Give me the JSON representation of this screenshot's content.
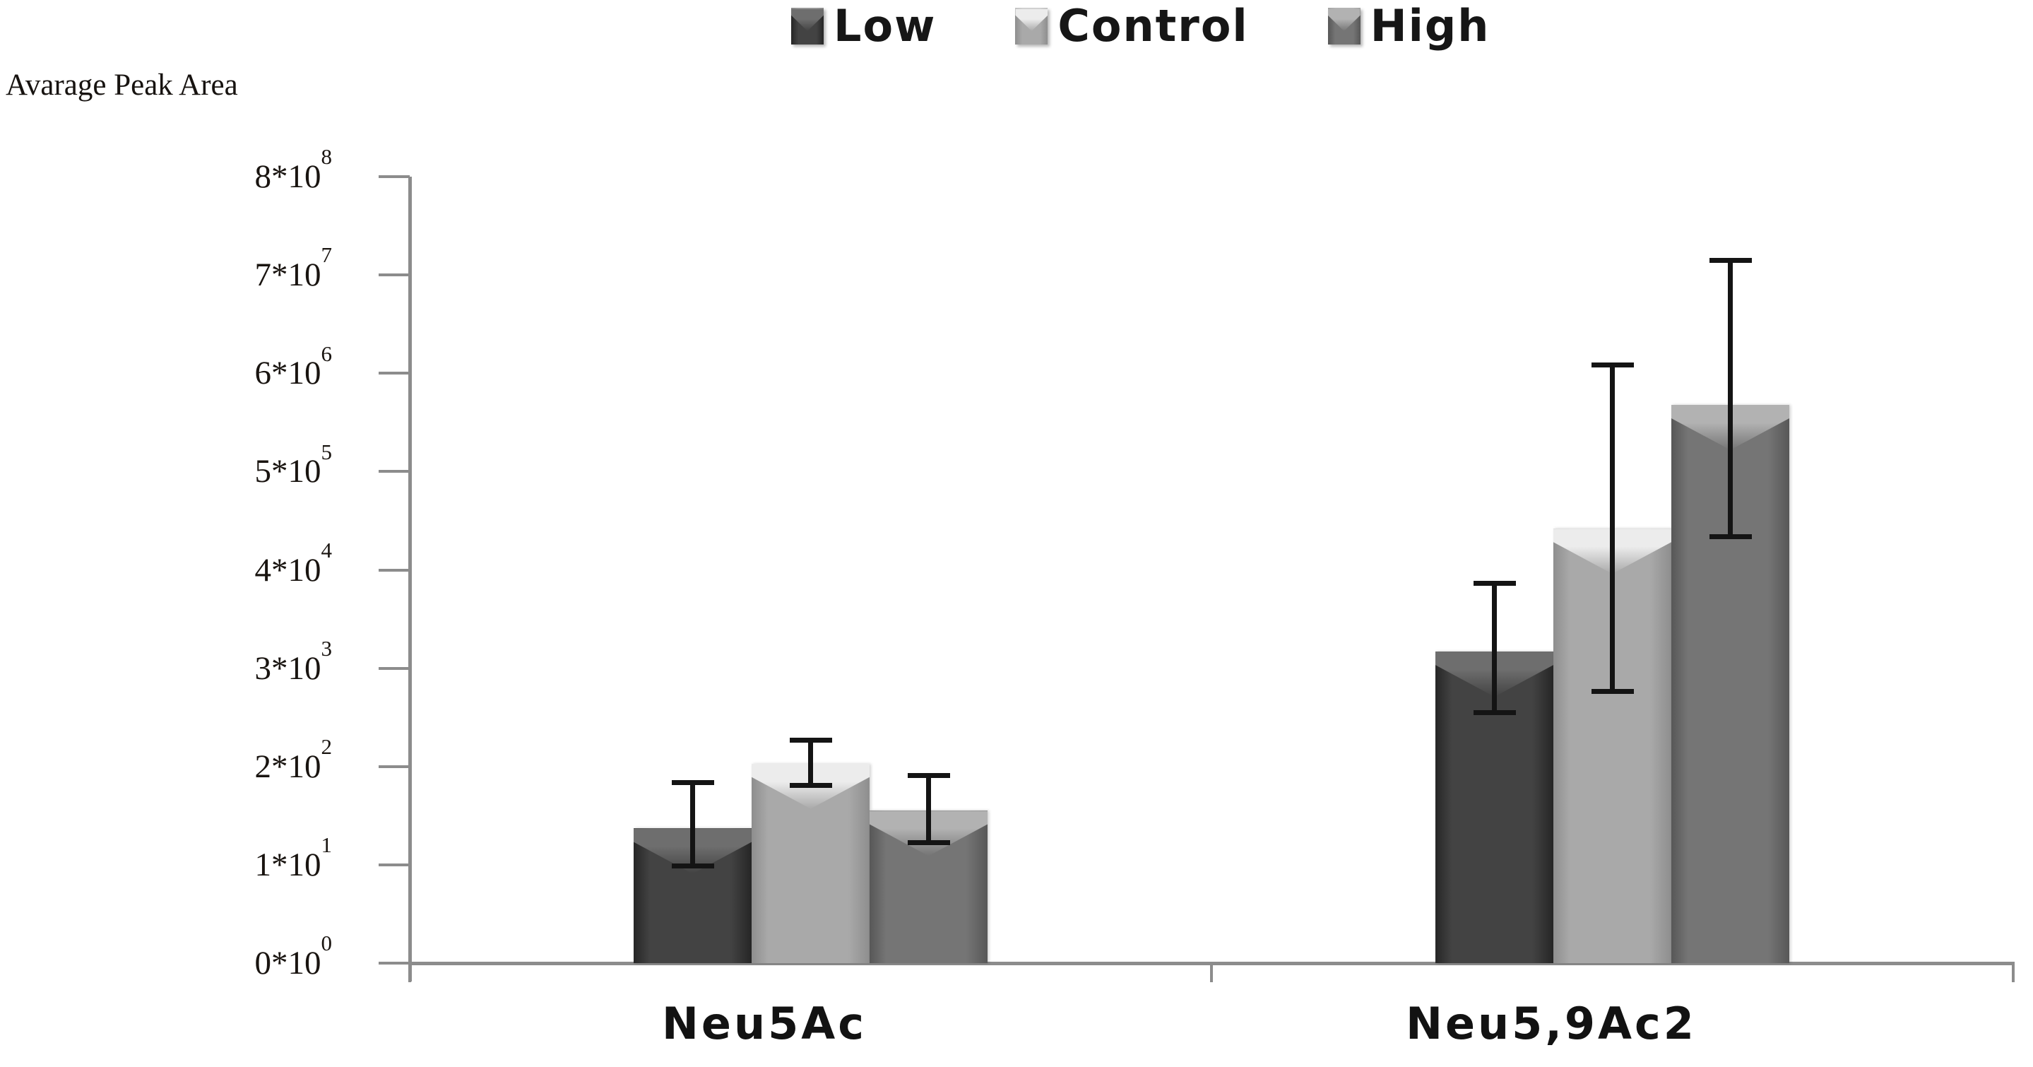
{
  "axis_title": "Avarage Peak Area",
  "legend": {
    "items": [
      {
        "label": "Low",
        "color": "#434343",
        "edge_color": "#262626",
        "highlight_color": "#6e6e6e"
      },
      {
        "label": "Control",
        "color": "#a9a9a9",
        "edge_color": "#8e8e8e",
        "highlight_color": "#ececec"
      },
      {
        "label": "High",
        "color": "#757575",
        "edge_color": "#575757",
        "highlight_color": "#b2b2b2"
      }
    ]
  },
  "x_axis": {
    "categories": [
      "Neu5Ac",
      "Neu5,9Ac2"
    ]
  },
  "colors": {
    "axis": "#8c8c8c",
    "error_bar": "#141414",
    "text": "#161616",
    "background": "#ffffff"
  },
  "chart_data": {
    "type": "bar",
    "title": "",
    "ylabel": "Avarage Peak Area",
    "xlabel": "",
    "categories": [
      "Neu5Ac",
      "Neu5,9Ac2"
    ],
    "series": [
      {
        "name": "Low",
        "values": [
          1.37,
          3.17
        ],
        "err_low": [
          0.99,
          2.55
        ],
        "err_high": [
          1.84,
          3.87
        ],
        "color": "#434343",
        "edge_color": "#262626",
        "highlight_color": "#6e6e6e"
      },
      {
        "name": "Control",
        "values": [
          2.03,
          4.42
        ],
        "err_low": [
          1.81,
          2.77
        ],
        "err_high": [
          2.27,
          6.09
        ],
        "color": "#a9a9a9",
        "edge_color": "#8e8e8e",
        "highlight_color": "#ececec"
      },
      {
        "name": "High",
        "values": [
          1.55,
          5.68
        ],
        "err_low": [
          1.23,
          4.34
        ],
        "err_high": [
          1.91,
          7.15
        ],
        "color": "#757575",
        "edge_color": "#575757",
        "highlight_color": "#b2b2b2"
      }
    ],
    "y_ticks": [
      "0*10^0",
      "1*10^1",
      "2*10^2",
      "3*10^3",
      "4*10^4",
      "5*10^5",
      "6*10^6",
      "7*10^7",
      "8*10^8"
    ],
    "ylim": [
      0,
      8
    ],
    "value_scale_note": "values are in y-axis tick units; tick n is labeled n*10^n",
    "grid": false,
    "legend_position": "top-center",
    "error_bars": true
  }
}
